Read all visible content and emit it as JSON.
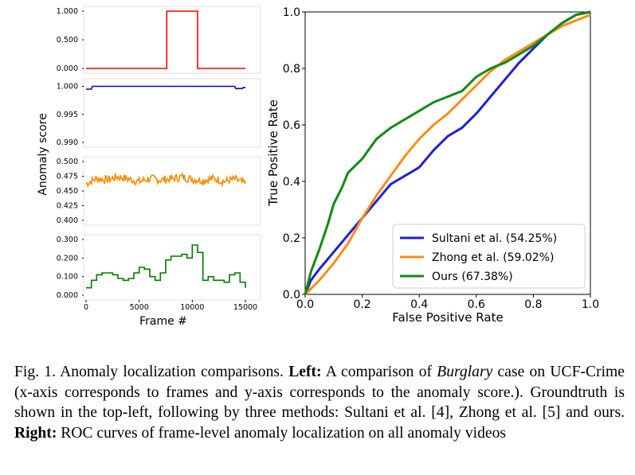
{
  "chart_data": [
    {
      "type": "line",
      "panel": "groundtruth",
      "ylim": [
        0,
        1
      ],
      "yticks": [
        "0.000",
        "0.500",
        "1.000"
      ],
      "series": [
        {
          "x": [
            0,
            7600,
            7600,
            10500,
            10500,
            15000
          ],
          "y": [
            0,
            0,
            1,
            1,
            0,
            0
          ]
        }
      ]
    },
    {
      "type": "line",
      "panel": "sultani",
      "ylim": [
        0.99,
        1.0005
      ],
      "yticks": [
        "0.990",
        "0.995",
        "1.000"
      ],
      "series": [
        {
          "x": [
            0,
            500,
            600,
            14000,
            14100,
            14700,
            14800,
            15000
          ],
          "y": [
            0.9995,
            0.9995,
            1.0,
            1.0,
            0.9996,
            0.9996,
            0.9998,
            0.9998
          ]
        }
      ]
    },
    {
      "type": "line",
      "panel": "zhong",
      "ylim": [
        0.4,
        0.5
      ],
      "yticks": [
        "0.400",
        "0.425",
        "0.450",
        "0.475",
        "0.500"
      ],
      "series": [
        {
          "x": [
            0,
            1000,
            2000,
            3000,
            4000,
            5000,
            6000,
            7000,
            8000,
            9000,
            10000,
            11000,
            12000,
            13000,
            14000,
            15000
          ],
          "y": [
            0.462,
            0.471,
            0.469,
            0.474,
            0.47,
            0.466,
            0.471,
            0.469,
            0.47,
            0.474,
            0.47,
            0.468,
            0.471,
            0.466,
            0.47,
            0.462
          ]
        }
      ]
    },
    {
      "type": "line",
      "panel": "ours",
      "ylim": [
        0,
        0.3
      ],
      "yticks": [
        "0.000",
        "0.100",
        "0.200",
        "0.300"
      ],
      "xticks": [
        "0",
        "5000",
        "10000",
        "15000"
      ],
      "xlabel": "Frame #",
      "ylabel": "Anomaly score",
      "series": [
        {
          "x": [
            0,
            500,
            1000,
            1500,
            2500,
            3000,
            3500,
            4000,
            4500,
            5000,
            5500,
            6000,
            6500,
            7000,
            7500,
            8000,
            9000,
            9500,
            10000,
            10500,
            11000,
            11500,
            12000,
            13000,
            13500,
            14000,
            14500,
            15000
          ],
          "y": [
            0.04,
            0.08,
            0.11,
            0.12,
            0.11,
            0.09,
            0.08,
            0.09,
            0.12,
            0.15,
            0.14,
            0.1,
            0.08,
            0.12,
            0.19,
            0.21,
            0.22,
            0.2,
            0.27,
            0.23,
            0.08,
            0.1,
            0.08,
            0.07,
            0.11,
            0.12,
            0.07,
            0.04
          ]
        }
      ]
    },
    {
      "type": "line",
      "panel": "roc",
      "xlabel": "False Positive Rate",
      "ylabel": "True Positive Rate",
      "xlim": [
        0,
        1
      ],
      "ylim": [
        0,
        1
      ],
      "xticks": [
        "0.0",
        "0.2",
        "0.4",
        "0.6",
        "0.8",
        "1.0"
      ],
      "yticks": [
        "0.0",
        "0.2",
        "0.4",
        "0.6",
        "0.8",
        "1.0"
      ],
      "legend": "lower-right",
      "series": [
        {
          "name": "Sultani et al. (54.25%)",
          "color": "#1f1fd6",
          "x": [
            0,
            0.02,
            0.05,
            0.1,
            0.15,
            0.2,
            0.25,
            0.3,
            0.35,
            0.4,
            0.45,
            0.5,
            0.55,
            0.6,
            0.65,
            0.7,
            0.75,
            0.8,
            0.85,
            0.9,
            0.95,
            1.0
          ],
          "y": [
            0,
            0.05,
            0.09,
            0.15,
            0.21,
            0.27,
            0.33,
            0.39,
            0.42,
            0.45,
            0.51,
            0.56,
            0.59,
            0.64,
            0.7,
            0.76,
            0.82,
            0.87,
            0.92,
            0.96,
            0.99,
            1.0
          ]
        },
        {
          "name": "Zhong et al. (59.02%)",
          "color": "#ff8c1a",
          "x": [
            0,
            0.05,
            0.1,
            0.15,
            0.2,
            0.25,
            0.3,
            0.35,
            0.4,
            0.45,
            0.5,
            0.55,
            0.6,
            0.65,
            0.7,
            0.75,
            0.8,
            0.85,
            0.9,
            0.95,
            1.0
          ],
          "y": [
            0,
            0.05,
            0.11,
            0.18,
            0.27,
            0.35,
            0.42,
            0.49,
            0.55,
            0.6,
            0.64,
            0.69,
            0.74,
            0.79,
            0.83,
            0.86,
            0.89,
            0.92,
            0.95,
            0.97,
            0.99
          ]
        },
        {
          "name": "Ours (67.38%)",
          "color": "#138a13",
          "x": [
            0,
            0.02,
            0.05,
            0.08,
            0.1,
            0.13,
            0.15,
            0.18,
            0.2,
            0.25,
            0.3,
            0.35,
            0.4,
            0.45,
            0.5,
            0.55,
            0.6,
            0.65,
            0.7,
            0.75,
            0.8,
            0.85,
            0.9,
            0.95,
            1.0
          ],
          "y": [
            0,
            0.08,
            0.16,
            0.25,
            0.32,
            0.38,
            0.43,
            0.46,
            0.48,
            0.55,
            0.59,
            0.62,
            0.65,
            0.68,
            0.7,
            0.72,
            0.77,
            0.8,
            0.82,
            0.85,
            0.88,
            0.92,
            0.96,
            0.99,
            1.0
          ]
        }
      ]
    }
  ],
  "caption": {
    "prefix": "Fig. 1.   Anomaly localization comparisons.",
    "left_label": "Left:",
    "text1": " A comparison of ",
    "italic": "Burglary",
    "text2": " case on UCF-Crime (x-axis corresponds to frames and y-axis corresponds to the anomaly score.). Groundtruth is shown in the top-left, following by three methods: Sultani et al. [4], Zhong et al. [5] and ours. ",
    "right_label": "Right:",
    "text3": " ROC curves of frame-level anomaly localization on all anomaly videos"
  }
}
